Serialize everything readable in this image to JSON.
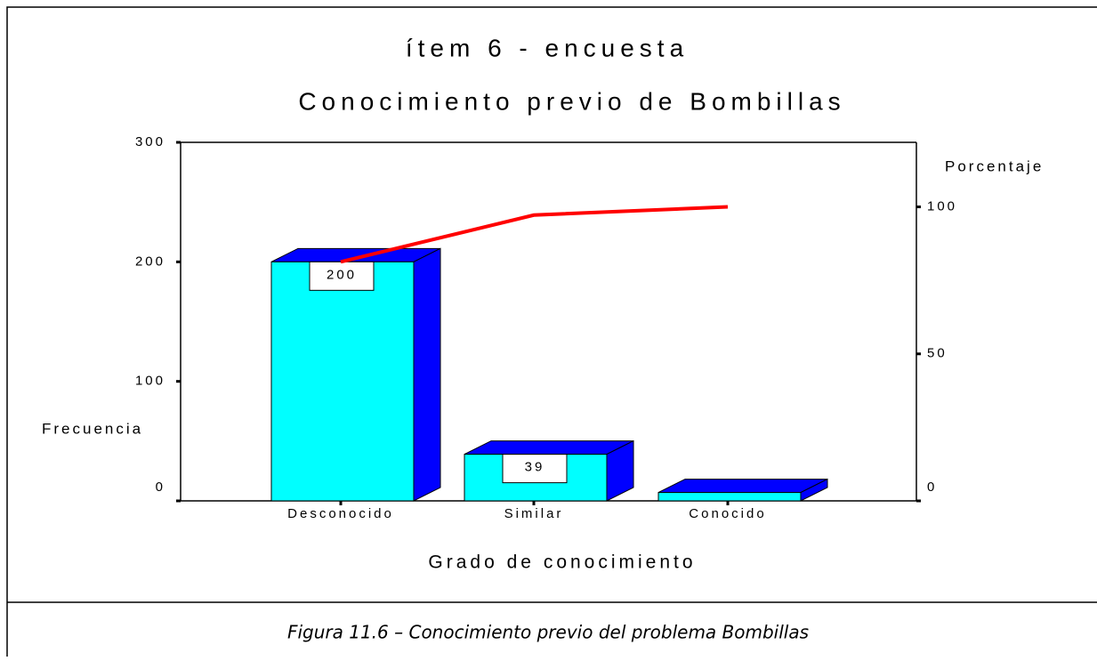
{
  "chart_data": {
    "type": "bar",
    "title": "ítem 6 - encuesta",
    "subtitle": "Conocimiento previo de Bombillas",
    "x_label": "Grado de conocimiento",
    "y_label": "Frecuencia",
    "y2_label": "Porcentaje",
    "categories": [
      "Desconocido",
      "Similar",
      "Conocido"
    ],
    "series": [
      {
        "type": "bar",
        "color": "#00ffff",
        "values": [
          200,
          39,
          7
        ],
        "value_labels": [
          "200",
          "39",
          null
        ]
      },
      {
        "type": "line",
        "axis": "y2",
        "color": "#ff0000",
        "values": [
          81.3,
          97.2,
          100
        ]
      }
    ],
    "ylim": [
      0,
      300
    ],
    "yticks": [
      0,
      100,
      200,
      300
    ],
    "y2lim": [
      0,
      121.95
    ],
    "y2ticks": [
      0,
      50,
      100
    ]
  },
  "caption": "Figura 11.6 – Conocimiento previo del problema Bombillas"
}
